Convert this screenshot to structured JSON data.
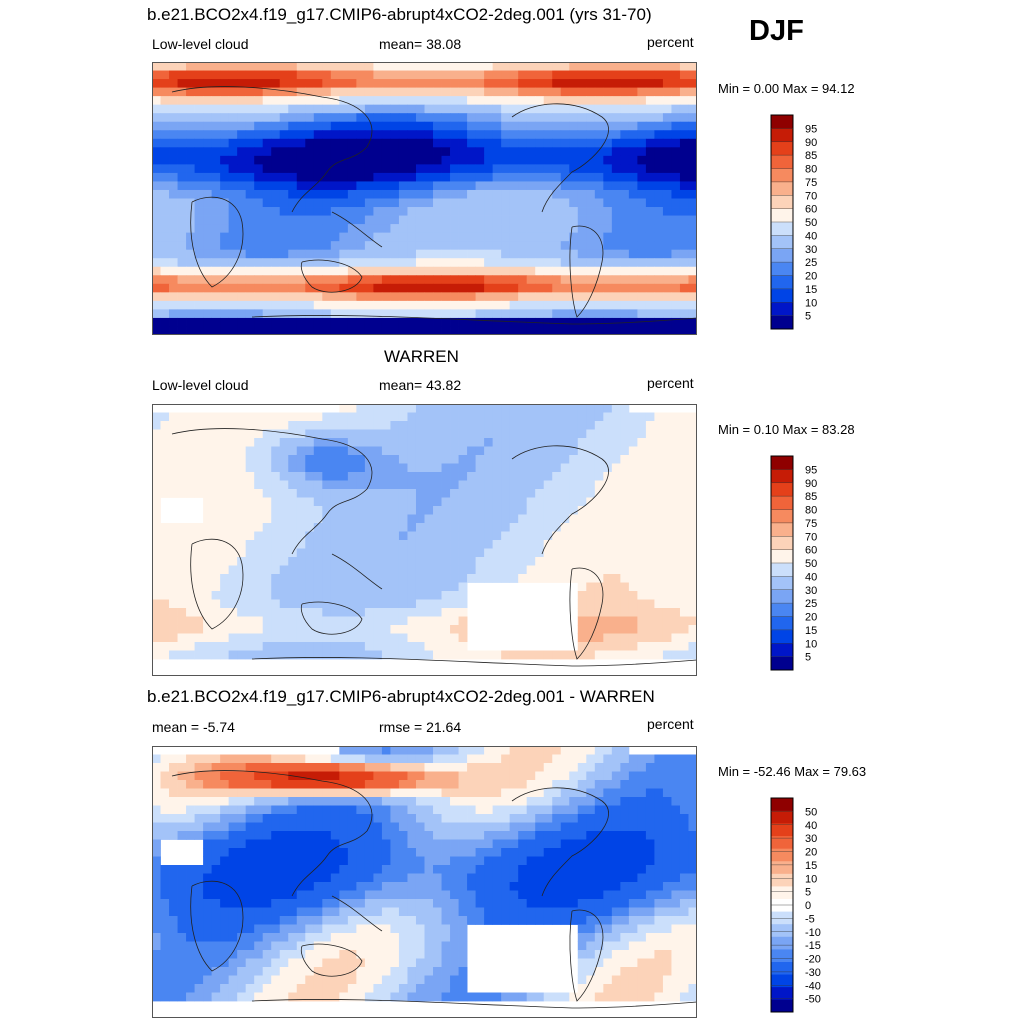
{
  "season": "DJF",
  "colors": {
    "seq": [
      "#00008f",
      "#0016c8",
      "#0044e6",
      "#2166ee",
      "#4a86f2",
      "#7aa5f4",
      "#a3c3f8",
      "#cbdffb",
      "#fff4ea",
      "#fcd3b9",
      "#f9b08c",
      "#f68a5f",
      "#f0643a",
      "#e4401a",
      "#c61c06",
      "#8f0000"
    ],
    "diff": [
      "#00008f",
      "#0016c8",
      "#0044e6",
      "#2166ee",
      "#4a86f2",
      "#7aa5f4",
      "#a3c3f8",
      "#cbdffb",
      "#ffffff",
      "#fff4ea",
      "#fcd3b9",
      "#f9b08c",
      "#f68a5f",
      "#f0643a",
      "#e4401a",
      "#c61c06",
      "#8f0000"
    ]
  },
  "panels": [
    {
      "title": "b.e21.BCO2x4.f19_g17.CMIP6-abrupt4xCO2-2deg.001 (yrs 31-70)",
      "left_label": "Low-level cloud",
      "center_label": "mean=  38.08",
      "units": "percent",
      "minmax": "Min =   0.00 Max =  94.12",
      "colorbar": [
        "5",
        "10",
        "15",
        "20",
        "25",
        "30",
        "40",
        "50",
        "60",
        "70",
        "75",
        "80",
        "85",
        "90",
        "95"
      ]
    },
    {
      "title": "WARREN",
      "left_label": "Low-level cloud",
      "center_label": "mean=  43.82",
      "units": "percent",
      "minmax": "Min =   0.10 Max =  83.28",
      "colorbar": [
        "5",
        "10",
        "15",
        "20",
        "25",
        "30",
        "40",
        "50",
        "60",
        "70",
        "75",
        "80",
        "85",
        "90",
        "95"
      ]
    },
    {
      "title": "b.e21.BCO2x4.f19_g17.CMIP6-abrupt4xCO2-2deg.001 - WARREN",
      "left_label": "mean =  -5.74",
      "center_label": "rmse =  21.64",
      "units": "percent",
      "minmax": "Min = -52.46 Max =  79.63",
      "colorbar": [
        "-50",
        "-40",
        "-30",
        "-20",
        "-15",
        "-10",
        "-5",
        "0",
        "5",
        "10",
        "15",
        "20",
        "30",
        "40",
        "50"
      ]
    }
  ]
}
